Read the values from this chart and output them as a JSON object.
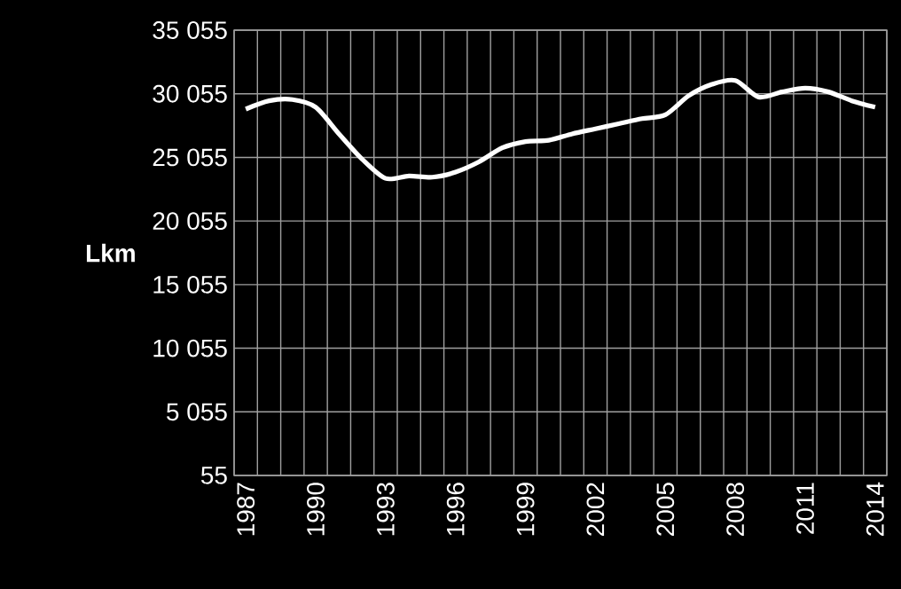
{
  "chart_data": {
    "type": "line",
    "categories": [
      "1987",
      null,
      null,
      "1990",
      null,
      null,
      "1993",
      null,
      null,
      "1996",
      null,
      null,
      "1999",
      null,
      null,
      "2002",
      null,
      null,
      "2005",
      null,
      null,
      "2008",
      null,
      null,
      "2011",
      null,
      null,
      "2014"
    ],
    "series": [
      {
        "color": "#ffffff",
        "values": [
          28850,
          29500,
          29600,
          29000,
          26900,
          24900,
          23400,
          23600,
          23500,
          23900,
          24700,
          25800,
          26300,
          26400,
          26900,
          27300,
          27700,
          28100,
          28400,
          29900,
          30800,
          31100,
          29800,
          30200,
          30500,
          30200,
          29500,
          29000
        ]
      }
    ],
    "ylabel": "Lkm",
    "ylim": [
      55,
      35055
    ],
    "yticks": [
      55,
      {
        "value": 5055,
        "label": "5 055"
      },
      {
        "value": 10055,
        "label": "10 055"
      },
      {
        "value": 15055,
        "label": "15 055"
      },
      {
        "value": 20055,
        "label": "20 055"
      },
      {
        "value": 25055,
        "label": "25 055"
      },
      {
        "value": 30055,
        "label": "30 055"
      },
      {
        "value": 35055,
        "label": "35 055"
      }
    ],
    "grid": true
  }
}
